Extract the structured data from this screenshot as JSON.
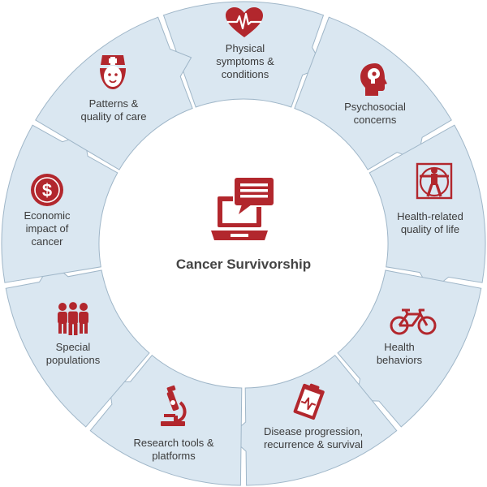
{
  "colors": {
    "segment": "#dae7f1",
    "segment_border": "#9fb6c8",
    "icon": "#b2272d",
    "text": "#3b3b3b"
  },
  "center": {
    "title": "Cancer Survivorship",
    "icon": "laptop-chat-icon"
  },
  "segments": [
    {
      "label": "Physical\nsymptoms &\nconditions",
      "icon": "heart-pulse-icon"
    },
    {
      "label": "Psychosocial\nconcerns",
      "icon": "head-profile-icon"
    },
    {
      "label": "Health-related\nquality of life",
      "icon": "vitruvian-man-icon"
    },
    {
      "label": "Health\nbehaviors",
      "icon": "bicycle-icon"
    },
    {
      "label": "Disease progression,\nrecurrence & survival",
      "icon": "clipboard-chart-icon"
    },
    {
      "label": "Research tools &\nplatforms",
      "icon": "microscope-icon"
    },
    {
      "label": "Special\npopulations",
      "icon": "people-group-icon"
    },
    {
      "label": "Economic\nimpact of\ncancer",
      "icon": "dollar-coin-icon"
    },
    {
      "label": "Patterns &\nquality of care",
      "icon": "nurse-icon"
    }
  ]
}
